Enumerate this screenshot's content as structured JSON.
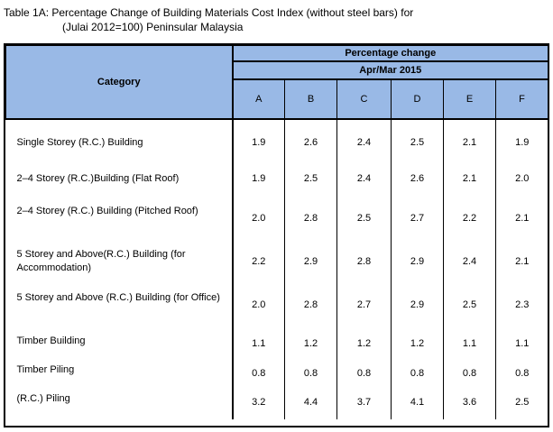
{
  "title": {
    "line1": "Table 1A: Percentage Change of Building Materials Cost Index (without steel bars) for",
    "line2": "(Julai 2012=100) Peninsular Malaysia"
  },
  "table": {
    "category_header": "Category",
    "group_header": "Percentage change",
    "period_header": "Apr/Mar 2015",
    "columns": [
      "A",
      "B",
      "C",
      "D",
      "E",
      "F"
    ],
    "rows": [
      {
        "label": "Single Storey (R.C.) Building",
        "values": [
          "1.9",
          "2.6",
          "2.4",
          "2.5",
          "2.1",
          "1.9"
        ]
      },
      {
        "label": "2–4 Storey (R.C.)Building (Flat Roof)",
        "values": [
          "1.9",
          "2.5",
          "2.4",
          "2.6",
          "2.1",
          "2.0"
        ]
      },
      {
        "label": "2–4 Storey (R.C.) Building (Pitched Roof)",
        "values": [
          "2.0",
          "2.8",
          "2.5",
          "2.7",
          "2.2",
          "2.1"
        ]
      },
      {
        "label": "5 Storey and Above(R.C.) Building (for Accommodation)",
        "values": [
          "2.2",
          "2.9",
          "2.8",
          "2.9",
          "2.4",
          "2.1"
        ]
      },
      {
        "label": "5 Storey and Above (R.C.) Building (for Office)",
        "values": [
          "2.0",
          "2.8",
          "2.7",
          "2.9",
          "2.5",
          "2.3"
        ]
      },
      {
        "label": "Timber Building",
        "values": [
          "1.1",
          "1.2",
          "1.2",
          "1.2",
          "1.1",
          "1.1"
        ]
      },
      {
        "label": "Timber Piling",
        "values": [
          "0.8",
          "0.8",
          "0.8",
          "0.8",
          "0.8",
          "0.8"
        ]
      },
      {
        "label": "(R.C.) Piling",
        "values": [
          "3.2",
          "4.4",
          "3.7",
          "4.1",
          "3.6",
          "2.5"
        ]
      }
    ]
  },
  "colors": {
    "header_fill": "#99b9e6",
    "border": "#000000"
  }
}
